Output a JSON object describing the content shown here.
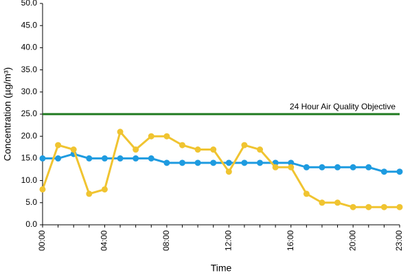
{
  "chart_data": {
    "type": "line",
    "y_label": "Concentration (µg/m³)",
    "x_label": "Time",
    "categories": [
      "00:00",
      null,
      null,
      null,
      "04:00",
      null,
      null,
      null,
      "08:00",
      null,
      null,
      null,
      "12:00",
      null,
      null,
      null,
      "16:00",
      null,
      null,
      null,
      "20:00",
      null,
      null,
      "23:00"
    ],
    "series": [
      {
        "color": "#1e9be0",
        "values": [
          15,
          15,
          16,
          15,
          15,
          15,
          15,
          15,
          14,
          14,
          14,
          14,
          14,
          14,
          14,
          14,
          14,
          13,
          13,
          13,
          13,
          13,
          12,
          12
        ]
      },
      {
        "color": "#f0c431",
        "values": [
          8,
          18,
          17,
          7,
          8,
          21,
          17,
          20,
          20,
          18,
          17,
          17,
          12,
          18,
          17,
          13,
          13,
          7,
          5,
          5,
          4,
          4,
          4,
          4
        ]
      }
    ],
    "reference_line": {
      "value": 25,
      "label": "24 Hour Air Quality Objective",
      "color": "#1f7a1f"
    },
    "ylim": [
      0,
      50
    ],
    "yticks": [
      {
        "value": 0,
        "label": "0.0"
      },
      {
        "value": 5,
        "label": "5.0"
      },
      {
        "value": 10,
        "label": "10.0"
      },
      {
        "value": 15,
        "label": "15.0"
      },
      {
        "value": 20,
        "label": "20.0"
      },
      {
        "value": 25,
        "label": "25.0"
      },
      {
        "value": 30,
        "label": "30.0"
      },
      {
        "value": 35,
        "label": "35.0"
      },
      {
        "value": 40,
        "label": "40.0"
      },
      {
        "value": 45,
        "label": "45.0"
      },
      {
        "value": 50,
        "label": "50.0"
      }
    ],
    "grid": false
  }
}
